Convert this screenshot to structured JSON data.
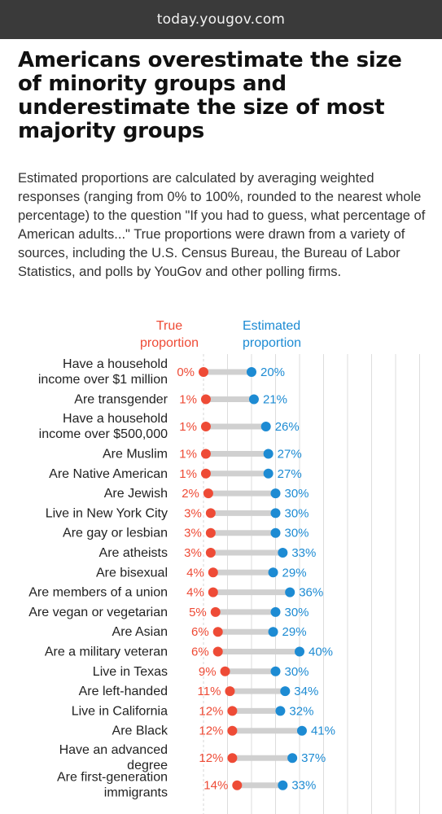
{
  "header": {
    "site": "today.yougov.com"
  },
  "title": "Americans overestimate the size of minority groups and underestimate the size of most majority groups",
  "subtitle": "Estimated proportions are calculated by averaging weighted responses (ranging from 0% to 100%, rounded to the nearest whole percentage) to the question \"If you had to guess, what percentage of American adults...\" True proportions were drawn from a variety of sources, including the U.S. Census Bureau, the Bureau of Labor Statistics, and polls by YouGov and other polling firms.",
  "colors": {
    "true": "#ee4b36",
    "estimated": "#1d8bd3",
    "bar": "#d0d0d0",
    "grid": "#dddddd"
  },
  "chart_data": {
    "type": "dumbbell",
    "legend": {
      "true_label": [
        "True",
        "proportion"
      ],
      "estimated_label": [
        "Estimated",
        "proportion"
      ]
    },
    "xlim": [
      0,
      100
    ],
    "grid": true,
    "series": [
      {
        "name": "True proportion",
        "key": "true"
      },
      {
        "name": "Estimated proportion",
        "key": "estimated"
      }
    ],
    "rows": [
      {
        "label": [
          "Have a household",
          "income over $1 million"
        ],
        "true": 0,
        "estimated": 20
      },
      {
        "label": [
          "Are transgender"
        ],
        "true": 1,
        "estimated": 21
      },
      {
        "label": [
          "Have a household",
          "income over $500,000"
        ],
        "true": 1,
        "estimated": 26
      },
      {
        "label": [
          "Are Muslim"
        ],
        "true": 1,
        "estimated": 27
      },
      {
        "label": [
          "Are Native American"
        ],
        "true": 1,
        "estimated": 27
      },
      {
        "label": [
          "Are Jewish"
        ],
        "true": 2,
        "estimated": 30
      },
      {
        "label": [
          "Live in New York City"
        ],
        "true": 3,
        "estimated": 30
      },
      {
        "label": [
          "Are gay or lesbian"
        ],
        "true": 3,
        "estimated": 30
      },
      {
        "label": [
          "Are atheists"
        ],
        "true": 3,
        "estimated": 33
      },
      {
        "label": [
          "Are bisexual"
        ],
        "true": 4,
        "estimated": 29
      },
      {
        "label": [
          "Are members of a union"
        ],
        "true": 4,
        "estimated": 36
      },
      {
        "label": [
          "Are vegan or vegetarian"
        ],
        "true": 5,
        "estimated": 30
      },
      {
        "label": [
          "Are Asian"
        ],
        "true": 6,
        "estimated": 29
      },
      {
        "label": [
          "Are a military veteran"
        ],
        "true": 6,
        "estimated": 40
      },
      {
        "label": [
          "Live in Texas"
        ],
        "true": 9,
        "estimated": 30
      },
      {
        "label": [
          "Are left-handed"
        ],
        "true": 11,
        "estimated": 34
      },
      {
        "label": [
          "Live in California"
        ],
        "true": 12,
        "estimated": 32
      },
      {
        "label": [
          "Are Black"
        ],
        "true": 12,
        "estimated": 41
      },
      {
        "label": [
          "Have an advanced",
          "degree"
        ],
        "true": 12,
        "estimated": 37
      },
      {
        "label": [
          "Are first-generation",
          "immigrants"
        ],
        "true": 14,
        "estimated": 33
      }
    ]
  }
}
